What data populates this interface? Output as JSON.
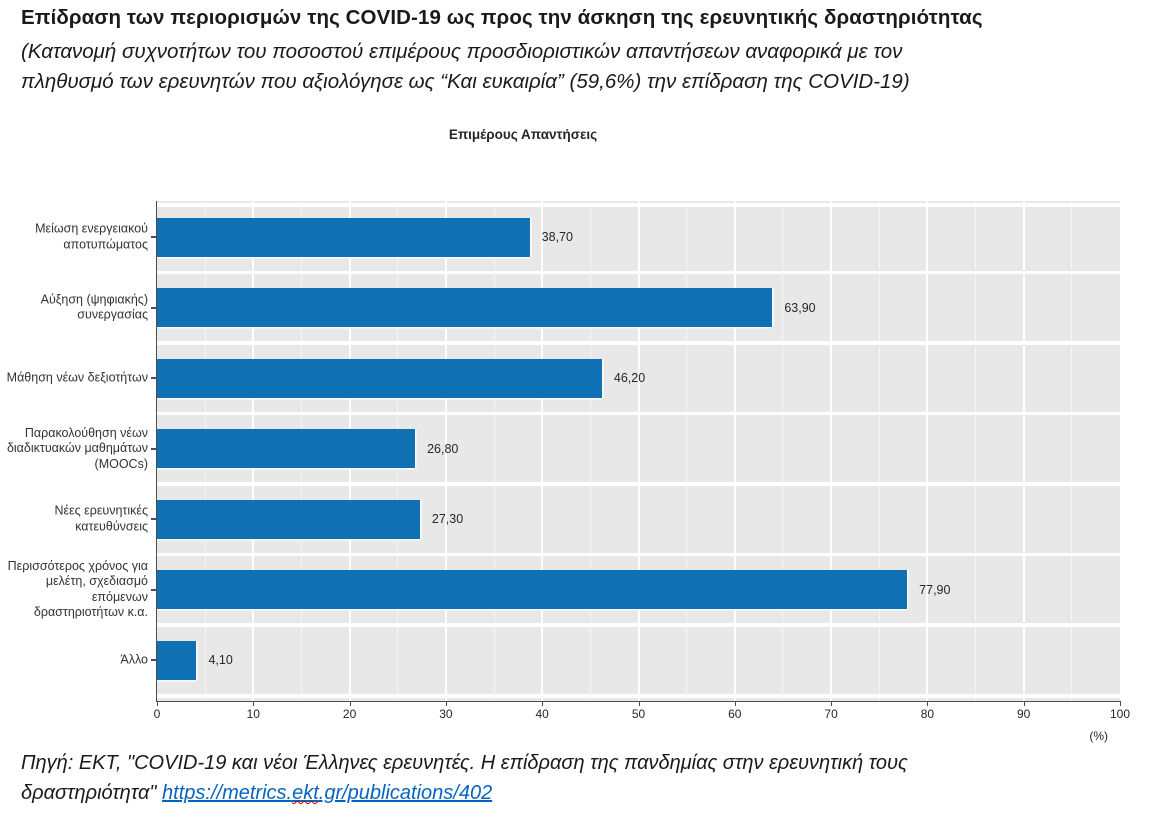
{
  "header": {
    "title": "Επίδραση των περιορισμών της COVID-19 ως προς την άσκηση της ερευνητικής δραστηριότητας",
    "subtitle_line1": "(Κατανομή συχνοτήτων του ποσοστού επιμέρους προσδιοριστικών απαντήσεων αναφορικά με τον",
    "subtitle_line2": "πληθυσμό των ερευνητών που αξιολόγησε ως “Και ευκαιρία”  (59,6%) την επίδραση της COVID-19)"
  },
  "chart_data": {
    "type": "bar",
    "orientation": "horizontal",
    "title": "Επιμέρους Απαντήσεις",
    "categories": [
      [
        "Μείωση ενεργειακού",
        "αποτυπώματος"
      ],
      [
        "Αύξηση (ψηφιακής)",
        "συνεργασίας"
      ],
      [
        "Μάθηση νέων δεξιοτήτων"
      ],
      [
        "Παρακολούθηση νέων",
        "διαδικτυακών μαθημάτων",
        "(MOOCs)"
      ],
      [
        "Νέες ερευνητικές",
        "κατευθύνσεις"
      ],
      [
        "Περισσότερος χρόνος για",
        "μελέτη, σχεδιασμό",
        "επόμενων",
        "δραστηριοτήτων κ.α."
      ],
      [
        "Άλλο"
      ]
    ],
    "values": [
      38.7,
      63.9,
      46.2,
      26.8,
      27.3,
      77.9,
      4.1
    ],
    "value_labels": [
      "38,70",
      "63,90",
      "46,20",
      "26,80",
      "27,30",
      "77,90",
      "4,10"
    ],
    "xlim": [
      0,
      100
    ],
    "x_ticks": [
      0,
      10,
      20,
      30,
      40,
      50,
      60,
      70,
      80,
      90,
      100
    ],
    "x_unit_label": "(%)",
    "legend": "none",
    "grid": "white major and minor vertical gridlines on gray panel",
    "bar_color": "#1070b4",
    "panel_bg": "#e8e8e8"
  },
  "footer": {
    "line1": "Πηγή: ΕΚΤ, \"COVID-19 και νέοι Έλληνες ερευνητές. Η επίδραση της πανδημίας στην ερευνητική τους",
    "line2_prefix": "δραστηριότητα\" ",
    "link_pre": "https://metrics.",
    "link_wavy": "ekt",
    "link_post": ".gr/publications/402",
    "link_full": "https://metrics.ekt.gr/publications/402"
  }
}
